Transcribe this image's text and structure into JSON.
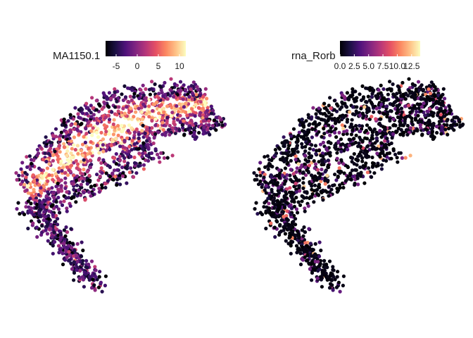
{
  "chart_data": [
    {
      "type": "scatter",
      "panel": "left",
      "legend": {
        "title": "MA1150.1",
        "ticks": [
          "-5",
          "0",
          "5",
          "10"
        ],
        "tick_values": [
          -5,
          0,
          5,
          10
        ],
        "range": [
          -7.5,
          11.5
        ],
        "placement": "top"
      },
      "color_scale": "magma",
      "value_profile": {
        "base": -3,
        "ridge": 9.5,
        "spread": 3.5
      },
      "grid": false,
      "axes": "none"
    },
    {
      "type": "scatter",
      "panel": "right",
      "legend": {
        "title": "rna_Rorb",
        "ticks": [
          "0.0",
          "2.5",
          "5.0",
          "7.5",
          "10.0",
          "12.5"
        ],
        "tick_values": [
          0,
          2.5,
          5,
          7.5,
          10,
          12.5
        ],
        "range": [
          0,
          14
        ],
        "placement": "top"
      },
      "color_scale": "magma",
      "value_profile": {
        "base": 0,
        "ridge": 4,
        "spread": 1.5
      },
      "grid": false,
      "axes": "none"
    }
  ],
  "colors": {
    "magma": [
      "#000004",
      "#1c1044",
      "#4f127b",
      "#812581",
      "#b5367a",
      "#e55064",
      "#fb8761",
      "#fec287",
      "#fcfdbf"
    ]
  }
}
